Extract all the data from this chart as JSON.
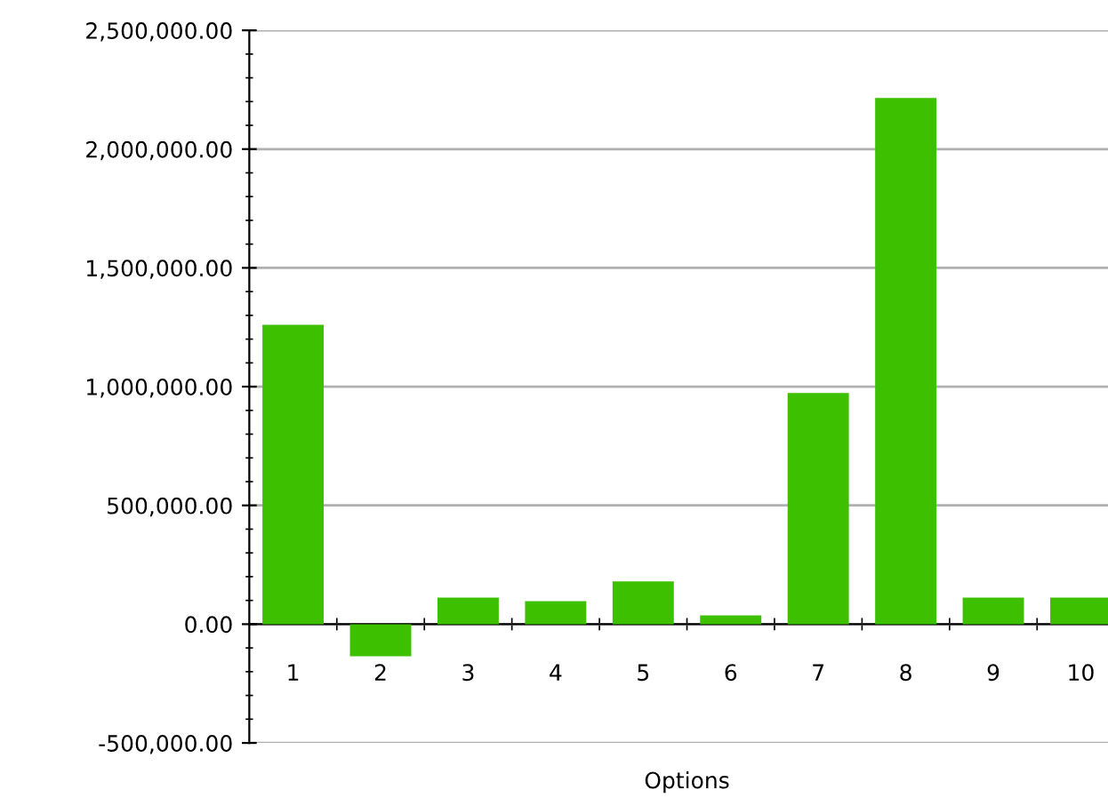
{
  "chart_data": {
    "type": "bar",
    "xlabel": "Options",
    "categories": [
      "1",
      "2",
      "3",
      "4",
      "5",
      "6",
      "7",
      "8",
      "9",
      "10"
    ],
    "values": [
      1260000,
      -135000,
      112000,
      97000,
      180000,
      37000,
      973000,
      2215000,
      112000,
      112000
    ],
    "color": "#3cc000",
    "ylim": [
      -500000,
      2500000
    ],
    "yticks": [
      {
        "value": -500000,
        "label": "-500,000.00"
      },
      {
        "value": 0,
        "label": "0.00"
      },
      {
        "value": 500000,
        "label": "500,000.00"
      },
      {
        "value": 1000000,
        "label": "1,000,000.00"
      },
      {
        "value": 1500000,
        "label": "1,500,000.00"
      },
      {
        "value": 2000000,
        "label": "2,000,000.00"
      },
      {
        "value": 2500000,
        "label": "2,500,000.00"
      }
    ],
    "grid": "y"
  }
}
